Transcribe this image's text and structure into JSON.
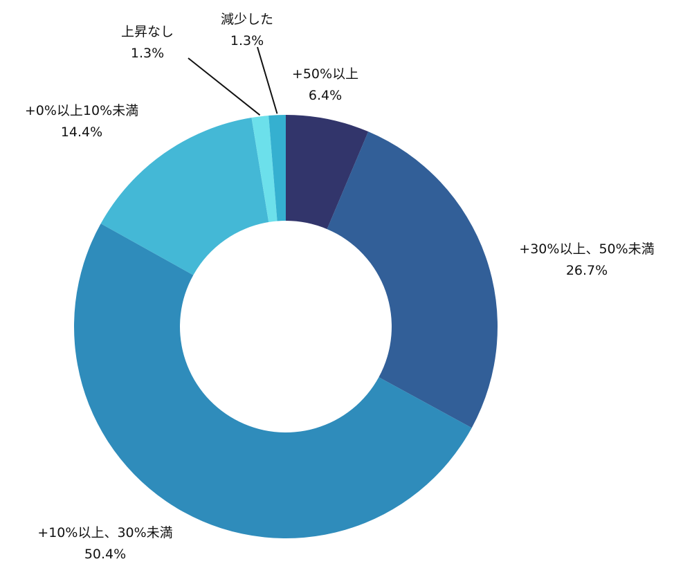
{
  "chart_data": {
    "type": "pie",
    "donut": true,
    "title": "",
    "slices": [
      {
        "label": "+50%以上",
        "value": 6.4,
        "value_label": "6.4%",
        "color": "#32356b"
      },
      {
        "label": "+30%以上、50%未満",
        "value": 26.7,
        "value_label": "26.7%",
        "color": "#325f98"
      },
      {
        "label": "+10%以上、30%未満",
        "value": 50.4,
        "value_label": "50.4%",
        "color": "#2f8cbb"
      },
      {
        "label": "+0%以上10%未満",
        "value": 14.4,
        "value_label": "14.4%",
        "color": "#44b8d6"
      },
      {
        "label": "上昇なし",
        "value": 1.3,
        "value_label": "1.3%",
        "color": "#6ce0eb"
      },
      {
        "label": "減少した",
        "value": 1.3,
        "value_label": "1.3%",
        "color": "#35b0d0"
      }
    ]
  }
}
